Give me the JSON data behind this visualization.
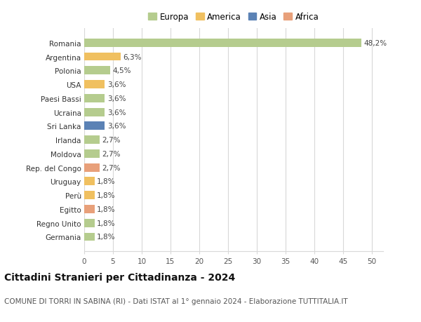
{
  "countries": [
    "Romania",
    "Argentina",
    "Polonia",
    "USA",
    "Paesi Bassi",
    "Ucraina",
    "Sri Lanka",
    "Irlanda",
    "Moldova",
    "Rep. del Congo",
    "Uruguay",
    "Perù",
    "Egitto",
    "Regno Unito",
    "Germania"
  ],
  "values": [
    48.2,
    6.3,
    4.5,
    3.6,
    3.6,
    3.6,
    3.6,
    2.7,
    2.7,
    2.7,
    1.8,
    1.8,
    1.8,
    1.8,
    1.8
  ],
  "labels": [
    "48,2%",
    "6,3%",
    "4,5%",
    "3,6%",
    "3,6%",
    "3,6%",
    "3,6%",
    "2,7%",
    "2,7%",
    "2,7%",
    "1,8%",
    "1,8%",
    "1,8%",
    "1,8%",
    "1,8%"
  ],
  "continents": [
    "Europa",
    "America",
    "Europa",
    "America",
    "Europa",
    "Europa",
    "Asia",
    "Europa",
    "Europa",
    "Africa",
    "America",
    "America",
    "Africa",
    "Europa",
    "Europa"
  ],
  "continent_colors": {
    "Europa": "#b5cc8e",
    "America": "#f0c060",
    "Asia": "#5b82b5",
    "Africa": "#e8a07a"
  },
  "legend_order": [
    "Europa",
    "America",
    "Asia",
    "Africa"
  ],
  "title": "Cittadini Stranieri per Cittadinanza - 2024",
  "subtitle": "COMUNE DI TORRI IN SABINA (RI) - Dati ISTAT al 1° gennaio 2024 - Elaborazione TUTTITALIA.IT",
  "xlim": [
    0,
    52
  ],
  "xticks": [
    0,
    5,
    10,
    15,
    20,
    25,
    30,
    35,
    40,
    45,
    50
  ],
  "background_color": "#ffffff",
  "grid_color": "#d8d8d8",
  "bar_height": 0.6,
  "title_fontsize": 10,
  "subtitle_fontsize": 7.5,
  "label_fontsize": 7.5,
  "tick_fontsize": 7.5,
  "legend_fontsize": 8.5
}
